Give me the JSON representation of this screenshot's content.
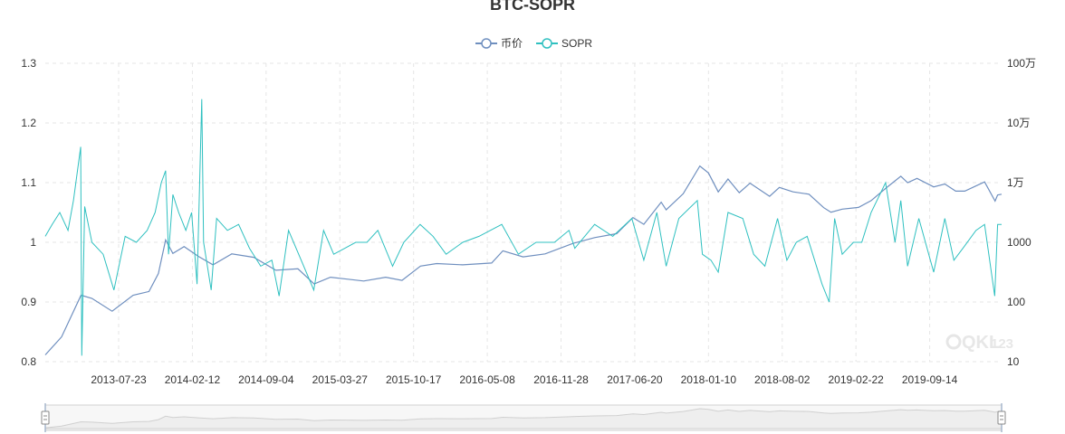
{
  "colors": {
    "price": "#6f8fbf",
    "sopr": "#2fc0c0",
    "grid": "#e6e6e6",
    "axis_text": "#333333",
    "slider_border": "#d2d2d2",
    "slider_fill": "#f2f2f2"
  },
  "watermark": {
    "brand": "QKL",
    "number": "123"
  },
  "chart_data": {
    "type": "line",
    "title": "BTC-SOPR",
    "legend": {
      "position": "top-center",
      "items": [
        {
          "name": "币价",
          "color": "#6f8fbf",
          "marker": "circle-line"
        },
        {
          "name": "SOPR",
          "color": "#2fc0c0",
          "marker": "circle-line"
        }
      ]
    },
    "grid": true,
    "x_axis": {
      "type": "time",
      "range": [
        "2013-01-01",
        "2020-03-31"
      ],
      "tick_labels": [
        "2013-07-23",
        "2014-02-12",
        "2014-09-04",
        "2015-03-27",
        "2015-10-17",
        "2016-05-08",
        "2016-11-28",
        "2017-06-20",
        "2018-01-10",
        "2018-08-02",
        "2019-02-22",
        "2019-09-14"
      ]
    },
    "y_axis_left": {
      "range": [
        0.8,
        1.3
      ],
      "ticks": [
        0.8,
        0.9,
        1.0,
        1.1,
        1.2,
        1.3
      ],
      "tick_labels": [
        "0.8",
        "0.9",
        "1",
        "1.1",
        "1.2",
        "1.3"
      ]
    },
    "y_axis_right": {
      "scale": "log",
      "range": [
        10,
        1000000
      ],
      "ticks": [
        10,
        100,
        1000,
        10000,
        100000,
        1000000
      ],
      "tick_labels": [
        "10",
        "100",
        "1000",
        "1万",
        "10万",
        "100万"
      ]
    },
    "series": [
      {
        "name": "币价",
        "axis": "right",
        "points": [
          [
            "2013-01-01",
            13
          ],
          [
            "2013-02-15",
            26
          ],
          [
            "2013-04-10",
            130
          ],
          [
            "2013-05-10",
            115
          ],
          [
            "2013-07-05",
            70
          ],
          [
            "2013-09-01",
            130
          ],
          [
            "2013-10-15",
            150
          ],
          [
            "2013-11-10",
            300
          ],
          [
            "2013-11-30",
            1100
          ],
          [
            "2013-12-20",
            650
          ],
          [
            "2014-01-20",
            850
          ],
          [
            "2014-03-01",
            580
          ],
          [
            "2014-04-10",
            420
          ],
          [
            "2014-06-01",
            640
          ],
          [
            "2014-08-01",
            560
          ],
          [
            "2014-10-01",
            340
          ],
          [
            "2014-12-01",
            360
          ],
          [
            "2015-01-15",
            200
          ],
          [
            "2015-03-01",
            260
          ],
          [
            "2015-06-01",
            225
          ],
          [
            "2015-08-01",
            260
          ],
          [
            "2015-09-15",
            230
          ],
          [
            "2015-11-05",
            400
          ],
          [
            "2015-12-20",
            440
          ],
          [
            "2016-03-01",
            420
          ],
          [
            "2016-05-20",
            450
          ],
          [
            "2016-06-20",
            720
          ],
          [
            "2016-08-15",
            570
          ],
          [
            "2016-10-15",
            640
          ],
          [
            "2016-12-31",
            960
          ],
          [
            "2017-03-01",
            1200
          ],
          [
            "2017-05-01",
            1400
          ],
          [
            "2017-06-15",
            2600
          ],
          [
            "2017-07-15",
            2000
          ],
          [
            "2017-09-01",
            4700
          ],
          [
            "2017-09-15",
            3500
          ],
          [
            "2017-11-01",
            6500
          ],
          [
            "2017-12-17",
            19000
          ],
          [
            "2018-01-10",
            14500
          ],
          [
            "2018-02-06",
            7000
          ],
          [
            "2018-03-05",
            11500
          ],
          [
            "2018-04-05",
            6800
          ],
          [
            "2018-05-05",
            9800
          ],
          [
            "2018-06-28",
            5900
          ],
          [
            "2018-07-25",
            8300
          ],
          [
            "2018-09-01",
            7000
          ],
          [
            "2018-10-15",
            6400
          ],
          [
            "2018-11-25",
            3800
          ],
          [
            "2018-12-15",
            3200
          ],
          [
            "2019-01-15",
            3600
          ],
          [
            "2019-03-01",
            3850
          ],
          [
            "2019-04-05",
            5000
          ],
          [
            "2019-05-15",
            8000
          ],
          [
            "2019-06-26",
            12800
          ],
          [
            "2019-07-15",
            10000
          ],
          [
            "2019-08-10",
            11800
          ],
          [
            "2019-09-25",
            8500
          ],
          [
            "2019-10-26",
            9500
          ],
          [
            "2019-11-25",
            7200
          ],
          [
            "2019-12-20",
            7200
          ],
          [
            "2020-02-13",
            10300
          ],
          [
            "2020-03-13",
            4900
          ],
          [
            "2020-03-20",
            6200
          ],
          [
            "2020-03-31",
            6400
          ]
        ]
      },
      {
        "name": "SOPR",
        "axis": "left",
        "points": [
          [
            "2013-01-01",
            1.01
          ],
          [
            "2013-01-20",
            1.03
          ],
          [
            "2013-02-10",
            1.05
          ],
          [
            "2013-03-05",
            1.02
          ],
          [
            "2013-03-20",
            1.07
          ],
          [
            "2013-04-09",
            1.16
          ],
          [
            "2013-04-12",
            0.81
          ],
          [
            "2013-04-20",
            1.06
          ],
          [
            "2013-05-10",
            1.0
          ],
          [
            "2013-06-10",
            0.98
          ],
          [
            "2013-07-10",
            0.92
          ],
          [
            "2013-08-10",
            1.01
          ],
          [
            "2013-09-10",
            1.0
          ],
          [
            "2013-10-10",
            1.02
          ],
          [
            "2013-11-01",
            1.05
          ],
          [
            "2013-11-18",
            1.1
          ],
          [
            "2013-11-30",
            1.12
          ],
          [
            "2013-12-08",
            0.98
          ],
          [
            "2013-12-20",
            1.08
          ],
          [
            "2014-01-05",
            1.05
          ],
          [
            "2014-01-25",
            1.02
          ],
          [
            "2014-02-10",
            1.05
          ],
          [
            "2014-02-25",
            0.93
          ],
          [
            "2014-03-10",
            1.24
          ],
          [
            "2014-03-15",
            1.0
          ],
          [
            "2014-04-05",
            0.92
          ],
          [
            "2014-04-20",
            1.04
          ],
          [
            "2014-05-20",
            1.02
          ],
          [
            "2014-06-20",
            1.03
          ],
          [
            "2014-07-20",
            0.99
          ],
          [
            "2014-08-20",
            0.96
          ],
          [
            "2014-09-20",
            0.97
          ],
          [
            "2014-10-10",
            0.91
          ],
          [
            "2014-11-05",
            1.02
          ],
          [
            "2014-12-10",
            0.97
          ],
          [
            "2015-01-14",
            0.92
          ],
          [
            "2015-02-10",
            1.02
          ],
          [
            "2015-03-10",
            0.98
          ],
          [
            "2015-04-10",
            0.99
          ],
          [
            "2015-05-10",
            1.0
          ],
          [
            "2015-06-10",
            1.0
          ],
          [
            "2015-07-10",
            1.02
          ],
          [
            "2015-08-20",
            0.96
          ],
          [
            "2015-09-20",
            1.0
          ],
          [
            "2015-11-04",
            1.03
          ],
          [
            "2015-12-10",
            1.01
          ],
          [
            "2016-01-15",
            0.98
          ],
          [
            "2016-03-01",
            1.0
          ],
          [
            "2016-04-15",
            1.01
          ],
          [
            "2016-06-17",
            1.03
          ],
          [
            "2016-08-02",
            0.98
          ],
          [
            "2016-09-20",
            1.0
          ],
          [
            "2016-11-10",
            1.0
          ],
          [
            "2016-12-20",
            1.02
          ],
          [
            "2017-01-05",
            0.99
          ],
          [
            "2017-03-01",
            1.03
          ],
          [
            "2017-04-20",
            1.01
          ],
          [
            "2017-06-12",
            1.04
          ],
          [
            "2017-07-15",
            0.97
          ],
          [
            "2017-08-20",
            1.05
          ],
          [
            "2017-09-15",
            0.96
          ],
          [
            "2017-10-20",
            1.04
          ],
          [
            "2017-12-10",
            1.07
          ],
          [
            "2017-12-24",
            0.98
          ],
          [
            "2018-01-17",
            0.97
          ],
          [
            "2018-02-06",
            0.95
          ],
          [
            "2018-03-05",
            1.05
          ],
          [
            "2018-04-15",
            1.04
          ],
          [
            "2018-05-15",
            0.98
          ],
          [
            "2018-06-15",
            0.96
          ],
          [
            "2018-07-20",
            1.04
          ],
          [
            "2018-08-15",
            0.97
          ],
          [
            "2018-09-10",
            1.0
          ],
          [
            "2018-10-10",
            1.01
          ],
          [
            "2018-11-20",
            0.93
          ],
          [
            "2018-12-10",
            0.9
          ],
          [
            "2018-12-25",
            1.04
          ],
          [
            "2019-01-15",
            0.98
          ],
          [
            "2019-02-15",
            1.0
          ],
          [
            "2019-03-10",
            1.0
          ],
          [
            "2019-04-05",
            1.05
          ],
          [
            "2019-05-15",
            1.1
          ],
          [
            "2019-06-10",
            1.0
          ],
          [
            "2019-06-26",
            1.07
          ],
          [
            "2019-07-15",
            0.96
          ],
          [
            "2019-08-15",
            1.04
          ],
          [
            "2019-09-25",
            0.95
          ],
          [
            "2019-10-26",
            1.04
          ],
          [
            "2019-11-20",
            0.97
          ],
          [
            "2019-12-15",
            0.99
          ],
          [
            "2020-01-20",
            1.02
          ],
          [
            "2020-02-13",
            1.03
          ],
          [
            "2020-03-12",
            0.91
          ],
          [
            "2020-03-20",
            1.03
          ],
          [
            "2020-03-31",
            1.03
          ]
        ]
      }
    ],
    "data_zoom": {
      "type": "slider",
      "range_percent": [
        0,
        100
      ]
    }
  }
}
